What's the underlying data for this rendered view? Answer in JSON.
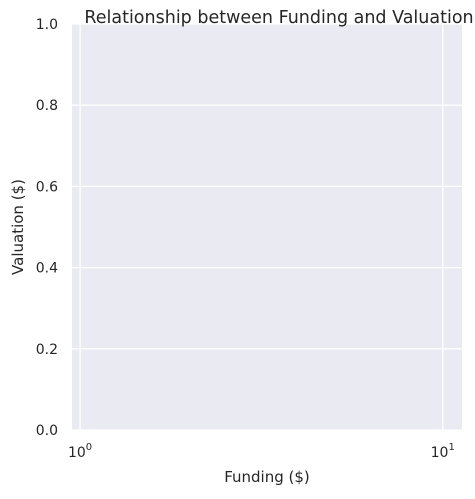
{
  "chart_data": {
    "type": "scatter",
    "title": "Relationship between Funding and Valuation",
    "xlabel": "Funding ($)",
    "ylabel": "Valuation ($)",
    "x_scale": "log",
    "xlim": [
      0.95,
      11.3
    ],
    "ylim": [
      0.0,
      1.0
    ],
    "x_ticks": [
      {
        "value": 1,
        "base": "10",
        "exp": "0"
      },
      {
        "value": 10,
        "base": "10",
        "exp": "1"
      }
    ],
    "y_ticks": [
      {
        "value": 0.0,
        "label": "0.0"
      },
      {
        "value": 0.2,
        "label": "0.2"
      },
      {
        "value": 0.4,
        "label": "0.4"
      },
      {
        "value": 0.6,
        "label": "0.6"
      },
      {
        "value": 0.8,
        "label": "0.8"
      },
      {
        "value": 1.0,
        "label": "1.0"
      }
    ],
    "grid": true,
    "background_color": "#EAEAF2",
    "grid_color": "#FFFFFF",
    "series": []
  }
}
